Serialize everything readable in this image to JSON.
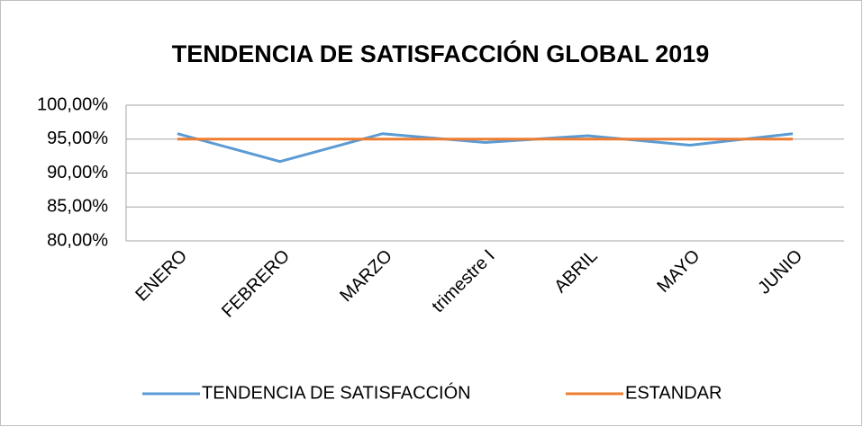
{
  "chart_data": {
    "type": "line",
    "title": "TENDENCIA DE SATISFACCIÓN GLOBAL 2019",
    "categories": [
      "ENERO",
      "FEBRERO",
      "MARZO",
      "trimestre I",
      "ABRIL",
      "MAYO",
      "JUNIO"
    ],
    "series": [
      {
        "name": "TENDENCIA DE SATISFACCIÓN",
        "color": "#5b9bd5",
        "values": [
          95.8,
          91.7,
          95.8,
          94.5,
          95.5,
          94.1,
          95.8
        ]
      },
      {
        "name": "ESTANDAR",
        "color": "#ed7d31",
        "values": [
          95,
          95,
          95,
          95,
          95,
          95,
          95
        ]
      }
    ],
    "ylim": [
      80,
      100
    ],
    "yticks": [
      {
        "value": 80,
        "label": "80,00%"
      },
      {
        "value": 85,
        "label": "85,00%"
      },
      {
        "value": 90,
        "label": "90,00%"
      },
      {
        "value": 95,
        "label": "95,00%"
      },
      {
        "value": 100,
        "label": "100,00%"
      }
    ],
    "grid": true,
    "legend": "bottom"
  }
}
